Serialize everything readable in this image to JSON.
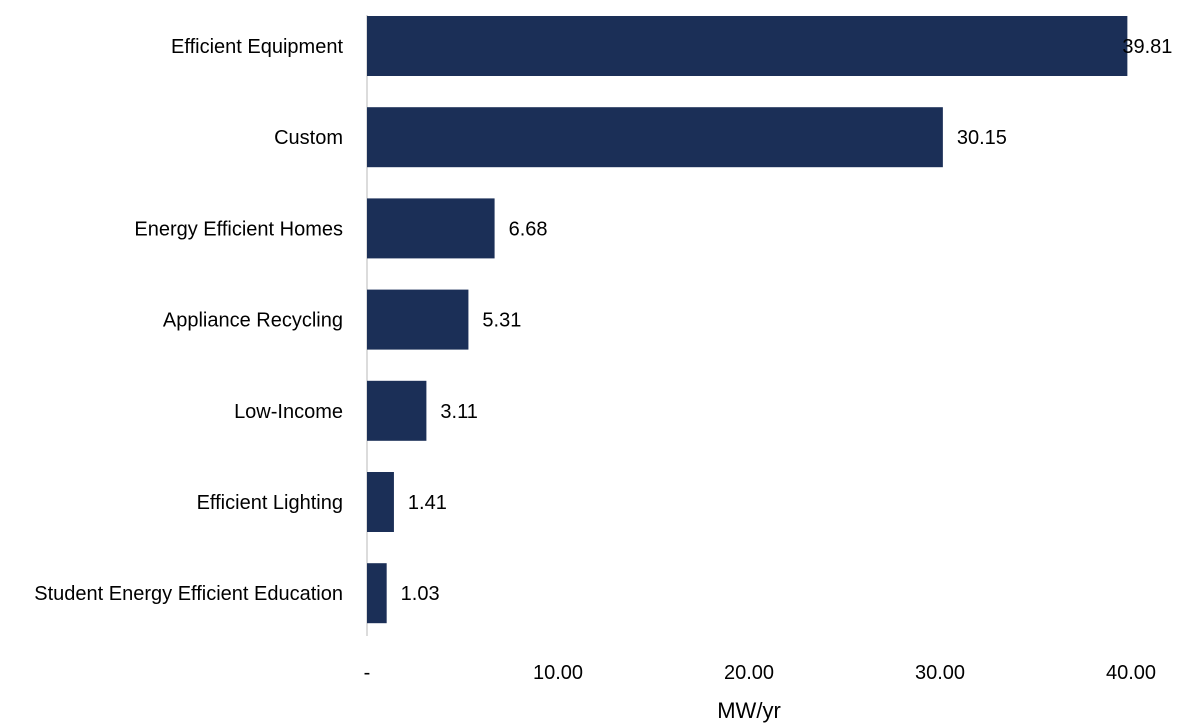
{
  "chart_data": {
    "type": "bar",
    "orientation": "horizontal",
    "categories": [
      "Efficient Equipment",
      "Custom",
      "Energy Efficient Homes",
      "Appliance Recycling",
      "Low-Income",
      "Efficient Lighting",
      "Student Energy Efficient Education"
    ],
    "values": [
      39.81,
      30.15,
      6.68,
      5.31,
      3.11,
      1.41,
      1.03
    ],
    "value_labels": [
      "39.81",
      "30.15",
      "6.68",
      "5.31",
      "3.11",
      "1.41",
      "1.03"
    ],
    "title": "",
    "xlabel": "MW/yr",
    "ylabel": "",
    "xlim": [
      0,
      42
    ],
    "xticks": [
      0,
      10,
      20,
      30,
      40
    ],
    "xtick_labels": [
      "-",
      "10.00",
      "20.00",
      "30.00",
      "40.00"
    ],
    "grid": false,
    "legend": "none",
    "bar_color": "#1b2f57",
    "axis_color": "#d0d0d0"
  }
}
